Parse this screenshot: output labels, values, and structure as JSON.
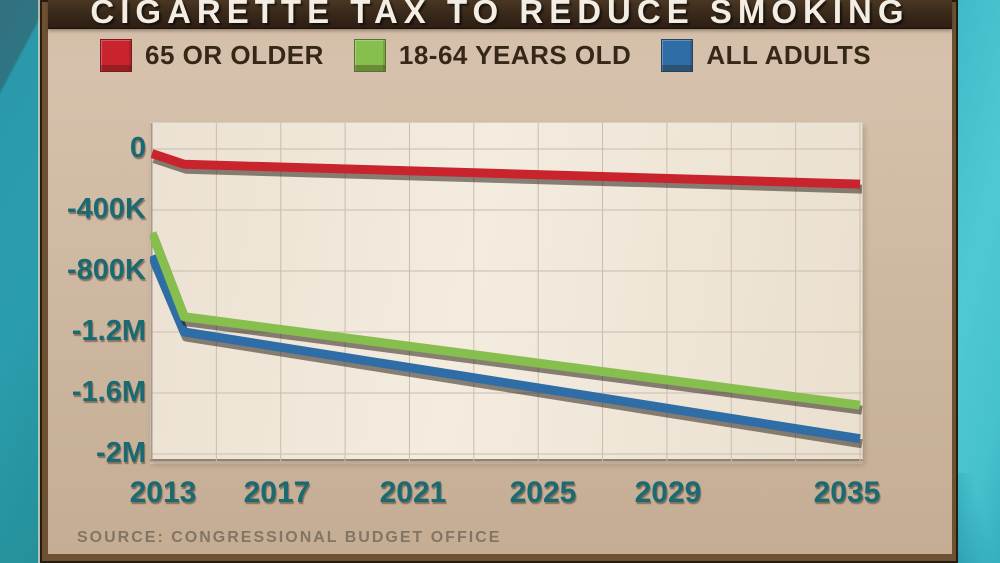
{
  "title": "CIGARETTE TAX TO REDUCE SMOKING",
  "source_line": "SOURCE: CONGRESSIONAL BUDGET OFFICE",
  "colors": {
    "axis_label_teal": "#1b6a72",
    "title_bar_brown": "#3a2a1b",
    "panel_tan": "#cdb7a0",
    "frame_brown": "#6e5033",
    "side_teal_left": "#2a9dad",
    "side_teal_right": "#4fc9d3",
    "source_text": "#7b6f60"
  },
  "chart_data": {
    "type": "line",
    "title": "CIGARETTE TAX TO REDUCE SMOKING",
    "x": [
      2013,
      2014,
      2035
    ],
    "x_tick_labels": [
      "2013",
      "2017",
      "2021",
      "2025",
      "2029",
      "2035"
    ],
    "y_tick_labels": [
      "0",
      "-400K",
      "-800K",
      "-1.2M",
      "-1.6M",
      "-2M"
    ],
    "y_tick_values": [
      0,
      -400000,
      -800000,
      -1200000,
      -1600000,
      -2000000
    ],
    "xlim": [
      2013,
      2035
    ],
    "ylim": [
      150000,
      -2070000
    ],
    "grid": true,
    "legend_position": "top",
    "series": [
      {
        "name": "65 OR OLDER",
        "color": "#c9232e",
        "values": [
          -30000,
          -100000,
          -230000
        ]
      },
      {
        "name": "18-64 YEARS OLD",
        "color": "#86bf4e",
        "values": [
          -550000,
          -1100000,
          -1680000
        ]
      },
      {
        "name": "ALL ADULTS",
        "color": "#2f6da6",
        "values": [
          -700000,
          -1200000,
          -1900000
        ]
      }
    ]
  }
}
